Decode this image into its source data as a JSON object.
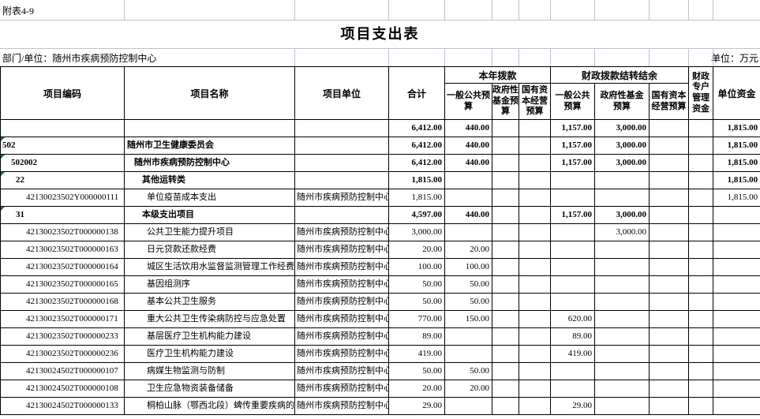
{
  "sheet": {
    "corner_label": "附表4-9",
    "title": "项目支出表",
    "dept_label": "部门/单位：随州市疾病预防控制中心",
    "unit_label": "单位：万元"
  },
  "colors": {
    "gridline": "#b9c4d5",
    "table_border": "#000000",
    "text_flag_green": "#1d6f42",
    "background": "#ffffff"
  },
  "table": {
    "header": {
      "code": "项目编码",
      "name": "项目名称",
      "unit": "项目单位",
      "total": "合计",
      "groups": [
        {
          "label": "本年拨款",
          "cols": [
            "一般公共预\n算",
            "政府性\n基金预\n算",
            "国有资\n本经营\n预算"
          ]
        },
        {
          "label": "财政拨款结转结余",
          "cols": [
            "一般公共\n预算",
            "政府性基金\n预算",
            "国有资本\n经营预算"
          ]
        }
      ],
      "fiscal_special": "财政\n专户\n管理\n资金",
      "unit_funds": "单位资金"
    },
    "rows": [
      {
        "code": "",
        "name": "",
        "unit": "",
        "level": 0,
        "bold": true,
        "flag": false,
        "values": [
          "6,412.00",
          "440.00",
          "",
          "",
          "1,157.00",
          "3,000.00",
          "",
          "",
          "1,815.00"
        ]
      },
      {
        "code": "502",
        "name": "随州市卫生健康委员会",
        "unit": "",
        "level": 0,
        "bold": true,
        "flag": true,
        "values": [
          "6,412.00",
          "440.00",
          "",
          "",
          "1,157.00",
          "3,000.00",
          "",
          "",
          "1,815.00"
        ]
      },
      {
        "code": "502002",
        "name": "随州市疾病预防控制中心",
        "unit": "",
        "level": 1,
        "bold": true,
        "flag": true,
        "values": [
          "6,412.00",
          "440.00",
          "",
          "",
          "1,157.00",
          "3,000.00",
          "",
          "",
          "1,815.00"
        ]
      },
      {
        "code": "22",
        "name": "其他运转类",
        "unit": "",
        "level": 2,
        "bold": true,
        "flag": true,
        "values": [
          "1,815.00",
          "",
          "",
          "",
          "",
          "",
          "",
          "",
          "1,815.00"
        ]
      },
      {
        "code": "42130023502Y000000111",
        "name": "单位疫苗成本支出",
        "unit": "随州市疾病预防控制中心",
        "level": 3,
        "bold": false,
        "flag": false,
        "values": [
          "1,815.00",
          "",
          "",
          "",
          "",
          "",
          "",
          "",
          "1,815.00"
        ]
      },
      {
        "code": "31",
        "name": "本级支出项目",
        "unit": "",
        "level": 2,
        "bold": true,
        "flag": true,
        "values": [
          "4,597.00",
          "440.00",
          "",
          "",
          "1,157.00",
          "3,000.00",
          "",
          "",
          ""
        ]
      },
      {
        "code": "42130023502T000000138",
        "name": "公共卫生能力提升项目",
        "unit": "随州市疾病预防控制中心",
        "level": 3,
        "bold": false,
        "flag": false,
        "values": [
          "3,000.00",
          "",
          "",
          "",
          "",
          "3,000.00",
          "",
          "",
          ""
        ]
      },
      {
        "code": "42130023502T000000163",
        "name": "日元贷款还款经费",
        "unit": "随州市疾病预防控制中心",
        "level": 3,
        "bold": false,
        "flag": false,
        "values": [
          "20.00",
          "20.00",
          "",
          "",
          "",
          "",
          "",
          "",
          ""
        ]
      },
      {
        "code": "42130023502T000000164",
        "name": "城区生活饮用水监督监测管理工作经费",
        "unit": "随州市疾病预防控制中心",
        "level": 3,
        "bold": false,
        "flag": false,
        "values": [
          "100.00",
          "100.00",
          "",
          "",
          "",
          "",
          "",
          "",
          ""
        ]
      },
      {
        "code": "42130023502T000000165",
        "name": "基因组测序",
        "unit": "随州市疾病预防控制中心",
        "level": 3,
        "bold": false,
        "flag": false,
        "values": [
          "50.00",
          "50.00",
          "",
          "",
          "",
          "",
          "",
          "",
          ""
        ]
      },
      {
        "code": "42130023502T000000168",
        "name": "基本公共卫生服务",
        "unit": "随州市疾病预防控制中心",
        "level": 3,
        "bold": false,
        "flag": false,
        "values": [
          "50.00",
          "50.00",
          "",
          "",
          "",
          "",
          "",
          "",
          ""
        ]
      },
      {
        "code": "42130023502T000000171",
        "name": "重大公共卫生传染病防控与应急处置",
        "unit": "随州市疾病预防控制中心",
        "level": 3,
        "bold": false,
        "flag": false,
        "values": [
          "770.00",
          "150.00",
          "",
          "",
          "620.00",
          "",
          "",
          "",
          ""
        ]
      },
      {
        "code": "42130023502T000000233",
        "name": "基层医疗卫生机构能力建设",
        "unit": "随州市疾病预防控制中心",
        "level": 3,
        "bold": false,
        "flag": false,
        "values": [
          "89.00",
          "",
          "",
          "",
          "89.00",
          "",
          "",
          "",
          ""
        ]
      },
      {
        "code": "42130023502T000000236",
        "name": "医疗卫生机构能力建设",
        "unit": "随州市疾病预防控制中心",
        "level": 3,
        "bold": false,
        "flag": false,
        "values": [
          "419.00",
          "",
          "",
          "",
          "419.00",
          "",
          "",
          "",
          ""
        ]
      },
      {
        "code": "42130024502T000000107",
        "name": "病媒生物监测与防制",
        "unit": "随州市疾病预防控制中心",
        "level": 3,
        "bold": false,
        "flag": false,
        "values": [
          "50.00",
          "50.00",
          "",
          "",
          "",
          "",
          "",
          "",
          ""
        ]
      },
      {
        "code": "42130024502T000000108",
        "name": "卫生应急物资装备储备",
        "unit": "随州市疾病预防控制中心",
        "level": 3,
        "bold": false,
        "flag": false,
        "values": [
          "20.00",
          "20.00",
          "",
          "",
          "",
          "",
          "",
          "",
          ""
        ]
      },
      {
        "code": "42130024502T000000133",
        "name": "桐柏山脉（鄂西北段）蜱传重要疾病的监",
        "unit": "随州市疾病预防控制中心",
        "level": 3,
        "bold": false,
        "flag": false,
        "values": [
          "29.00",
          "",
          "",
          "",
          "29.00",
          "",
          "",
          "",
          ""
        ]
      }
    ]
  }
}
